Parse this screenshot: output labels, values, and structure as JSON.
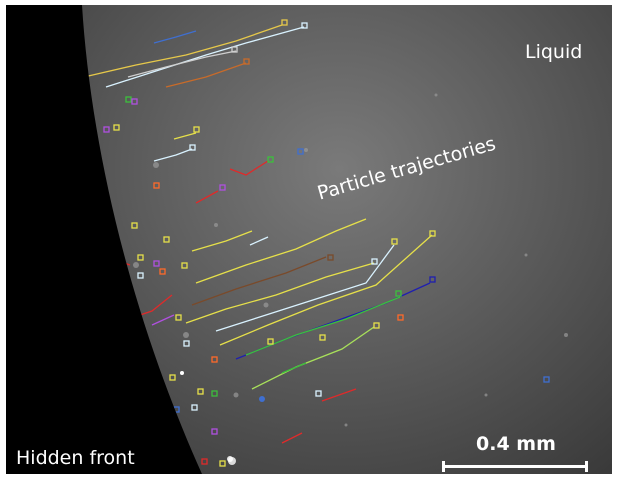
{
  "labels": {
    "liquid": "Liquid",
    "particle_trajectories": "Particle trajectories",
    "hidden_front": "Hidden front"
  },
  "scale_bar": {
    "label": "0.4 mm"
  },
  "colors": {
    "front": "#000000",
    "annotation": "#ffffff",
    "trajectory_palette": [
      "#e6e04a",
      "#d9f2ff",
      "#c86b2a",
      "#3f6fd0",
      "#a8e05a",
      "#e02a2a",
      "#1f1fb0",
      "#3cc03c",
      "#ff6a2a",
      "#b050e0",
      "#7a4a2a"
    ]
  }
}
